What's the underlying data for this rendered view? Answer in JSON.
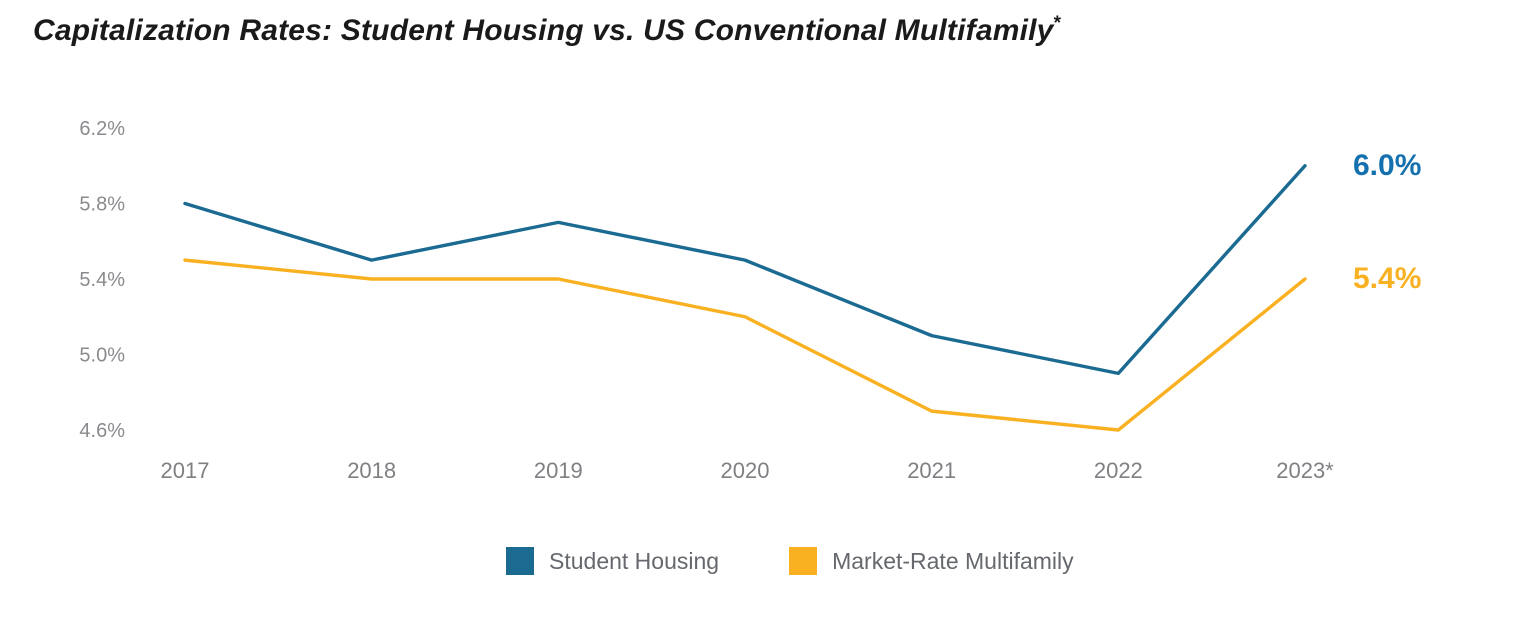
{
  "chart_data": {
    "type": "line",
    "title": "Capitalization Rates: Student Housing vs. US Conventional Multifamily",
    "title_superscript": "*",
    "categories": [
      "2017",
      "2018",
      "2019",
      "2020",
      "2021",
      "2022",
      "2023*"
    ],
    "series": [
      {
        "name": "Student Housing",
        "color": "#1A6A92",
        "values": [
          5.8,
          5.5,
          5.7,
          5.5,
          5.1,
          4.9,
          6.0
        ],
        "end_label": "6.0%",
        "end_label_color": "#1571AE"
      },
      {
        "name": "Market-Rate Multifamily",
        "color": "#F9B122",
        "values": [
          5.5,
          5.4,
          5.4,
          5.2,
          4.7,
          4.6,
          5.4
        ],
        "end_label": "5.4%",
        "end_label_color": "#F9B122"
      }
    ],
    "y_axis": {
      "min": 4.6,
      "max": 6.2,
      "ticks": [
        6.2,
        5.8,
        5.4,
        5.0,
        4.6
      ],
      "tick_labels": [
        "6.2%",
        "5.8%",
        "5.4%",
        "5.0%",
        "4.6%"
      ]
    },
    "grid": false,
    "axis_lines": false,
    "legend_position": "bottom-center",
    "colors": {
      "y_tick_text": "#8a8b8e",
      "x_tick_text": "#7f8084",
      "legend_text": "#65686d",
      "title_text": "#1a1a1a",
      "background": "#ffffff"
    }
  }
}
